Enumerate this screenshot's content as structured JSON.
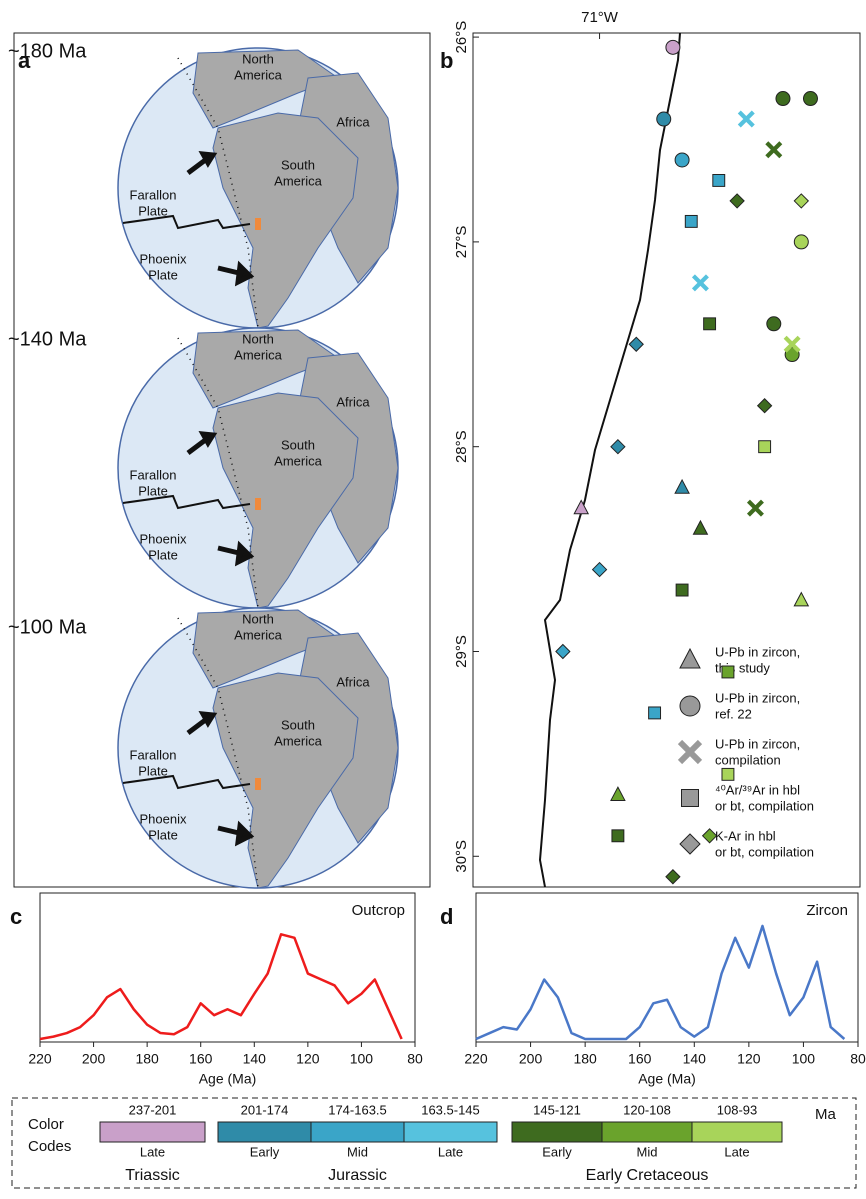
{
  "panel_labels": [
    "a",
    "b",
    "c",
    "d"
  ],
  "panel_a": {
    "maps": [
      {
        "age": "~180 Ma",
        "north_america": [
          "North",
          "America"
        ],
        "africa": "Africa",
        "south_america": [
          "South",
          "America"
        ],
        "farallon": [
          "Farallon",
          "Plate"
        ],
        "phoenix": [
          "Phoenix",
          "Plate"
        ]
      },
      {
        "age": "~140 Ma",
        "north_america": [
          "North",
          "America"
        ],
        "africa": "Africa",
        "south_america": [
          "South",
          "America"
        ],
        "farallon": [
          "Farallon",
          "Plate"
        ],
        "phoenix": [
          "Phoenix",
          "Plate"
        ]
      },
      {
        "age": "~100 Ma",
        "north_america": [
          "North",
          "America"
        ],
        "africa": "Africa",
        "south_america": [
          "South",
          "America"
        ],
        "farallon": [
          "Farallon",
          "Plate"
        ],
        "phoenix": [
          "Phoenix",
          "Plate"
        ]
      }
    ]
  },
  "chart_data": [
    {
      "type": "scatter",
      "xlim": [
        -71.69,
        -69.58
      ],
      "ylim": [
        -30.15,
        -25.98
      ],
      "xticks": [
        {
          "value": -71,
          "label": "71°W"
        }
      ],
      "yticks": [
        {
          "value": -26,
          "label": "26°S"
        },
        {
          "value": -27,
          "label": "27°S"
        },
        {
          "value": -28,
          "label": "28°S"
        },
        {
          "value": -29,
          "label": "29°S"
        },
        {
          "value": -30,
          "label": "30°S"
        }
      ],
      "series": [
        {
          "name": [
            "U-Pb in zircon,",
            "this study"
          ],
          "marker": "triangle",
          "color": "#999999",
          "x": [
            -71.1,
            -70.45,
            -69.9,
            -70.55,
            -70.9
          ],
          "y": [
            -28.3,
            -28.4,
            -28.75,
            -28.2,
            -29.7
          ],
          "colors": [
            "#c9a0c9",
            "#3e6b1f",
            "#a8d45a",
            "#2f8ba8",
            "#6aa32c"
          ]
        },
        {
          "name": [
            "U-Pb in zircon,",
            "ref. 22"
          ],
          "marker": "circle",
          "color": "#999999",
          "x": [
            -70.6,
            -70.65,
            -70.55,
            -70.0,
            -69.85,
            -69.9,
            -69.95,
            -70.05
          ],
          "y": [
            -26.05,
            -26.4,
            -26.6,
            -26.3,
            -26.3,
            -27.0,
            -27.55,
            -27.4
          ],
          "colors": [
            "#c9a0c9",
            "#2f8ba8",
            "#3aa5c8",
            "#3e6b1f",
            "#3e6b1f",
            "#a8d45a",
            "#6aa32c",
            "#3e6b1f"
          ]
        },
        {
          "name": [
            "U-Pb in zircon,",
            "compilation"
          ],
          "marker": "cross",
          "color": "#999999",
          "x": [
            -70.2,
            -70.05,
            -70.45,
            -69.95,
            -70.15
          ],
          "y": [
            -26.4,
            -26.55,
            -27.2,
            -27.5,
            -28.3
          ],
          "colors": [
            "#56c2de",
            "#3e6b1f",
            "#56c2de",
            "#a8d45a",
            "#3e6b1f"
          ]
        },
        {
          "name": [
            "⁴⁰Ar/³⁹Ar in hbl",
            "or bt, compilation"
          ],
          "marker": "square",
          "color": "#999999",
          "x": [
            -70.5,
            -70.35,
            -70.4,
            -70.55,
            -70.3,
            -70.7,
            -70.9,
            -70.3,
            -70.1
          ],
          "y": [
            -26.9,
            -26.7,
            -27.4,
            -28.7,
            -29.1,
            -29.3,
            -29.9,
            -29.6,
            -28.0
          ],
          "colors": [
            "#3aa5c8",
            "#3aa5c8",
            "#3e6b1f",
            "#3e6b1f",
            "#6aa32c",
            "#3aa5c8",
            "#3e6b1f",
            "#a8d45a",
            "#a8d45a"
          ]
        },
        {
          "name": [
            "K-Ar in hbl",
            "or bt, compilation"
          ],
          "marker": "diamond",
          "color": "#999999",
          "x": [
            -70.8,
            -71.0,
            -70.9,
            -70.1,
            -69.9,
            -70.4,
            -71.2,
            -70.6,
            -70.25
          ],
          "y": [
            -27.5,
            -28.6,
            -28.0,
            -27.8,
            -26.8,
            -29.9,
            -29.0,
            -30.1,
            -26.8
          ],
          "colors": [
            "#2f8ba8",
            "#3aa5c8",
            "#2f8ba8",
            "#3e6b1f",
            "#a8d45a",
            "#6aa32c",
            "#3aa5c8",
            "#3e6b1f",
            "#3e6b1f"
          ]
        }
      ]
    },
    {
      "type": "line",
      "title": "Outcrop",
      "x_label": "Age (Ma)",
      "color": "#ee1c1c",
      "xlim": [
        220,
        80
      ],
      "ylim": [
        0,
        1
      ],
      "xticks": [
        220,
        200,
        180,
        160,
        140,
        120,
        100,
        80
      ],
      "x": [
        220,
        215,
        210,
        205,
        200,
        195,
        190,
        185,
        180,
        175,
        170,
        165,
        160,
        155,
        150,
        145,
        140,
        135,
        130,
        125,
        120,
        115,
        110,
        105,
        100,
        95,
        90,
        85
      ],
      "values": [
        0.0,
        0.02,
        0.05,
        0.1,
        0.2,
        0.35,
        0.42,
        0.25,
        0.12,
        0.05,
        0.04,
        0.1,
        0.3,
        0.2,
        0.25,
        0.2,
        0.38,
        0.55,
        0.88,
        0.85,
        0.55,
        0.5,
        0.45,
        0.3,
        0.38,
        0.5,
        0.25,
        0.0
      ]
    },
    {
      "type": "line",
      "title": "Zircon",
      "x_label": "Age (Ma)",
      "color": "#4a78c8",
      "xlim": [
        220,
        80
      ],
      "ylim": [
        0,
        1
      ],
      "xticks": [
        220,
        200,
        180,
        160,
        140,
        120,
        100,
        80
      ],
      "x": [
        220,
        215,
        210,
        205,
        200,
        195,
        190,
        185,
        180,
        175,
        170,
        165,
        160,
        155,
        150,
        145,
        140,
        135,
        130,
        125,
        120,
        115,
        110,
        105,
        100,
        95,
        90,
        85
      ],
      "values": [
        0.0,
        0.05,
        0.1,
        0.08,
        0.25,
        0.5,
        0.35,
        0.05,
        0.0,
        0.0,
        0.0,
        0.0,
        0.1,
        0.3,
        0.33,
        0.1,
        0.02,
        0.1,
        0.55,
        0.85,
        0.6,
        0.95,
        0.55,
        0.2,
        0.35,
        0.65,
        0.1,
        0.0
      ]
    }
  ],
  "color_codes": {
    "title": [
      "Color",
      "Codes"
    ],
    "unit": "Ma",
    "groups": [
      {
        "name": "Triassic",
        "periods": [
          {
            "range": "237-201",
            "name": "Late",
            "color": "#c9a0c9"
          }
        ]
      },
      {
        "name": "Jurassic",
        "periods": [
          {
            "range": "201-174",
            "name": "Early",
            "color": "#2f8ba8"
          },
          {
            "range": "174-163.5",
            "name": "Mid",
            "color": "#3aa5c8"
          },
          {
            "range": "163.5-145",
            "name": "Late",
            "color": "#56c2de"
          }
        ]
      },
      {
        "name": "Early Cretaceous",
        "periods": [
          {
            "range": "145-121",
            "name": "Early",
            "color": "#3e6b1f"
          },
          {
            "range": "120-108",
            "name": "Mid",
            "color": "#6aa32c"
          },
          {
            "range": "108-93",
            "name": "Late",
            "color": "#a8d45a"
          }
        ]
      }
    ]
  }
}
